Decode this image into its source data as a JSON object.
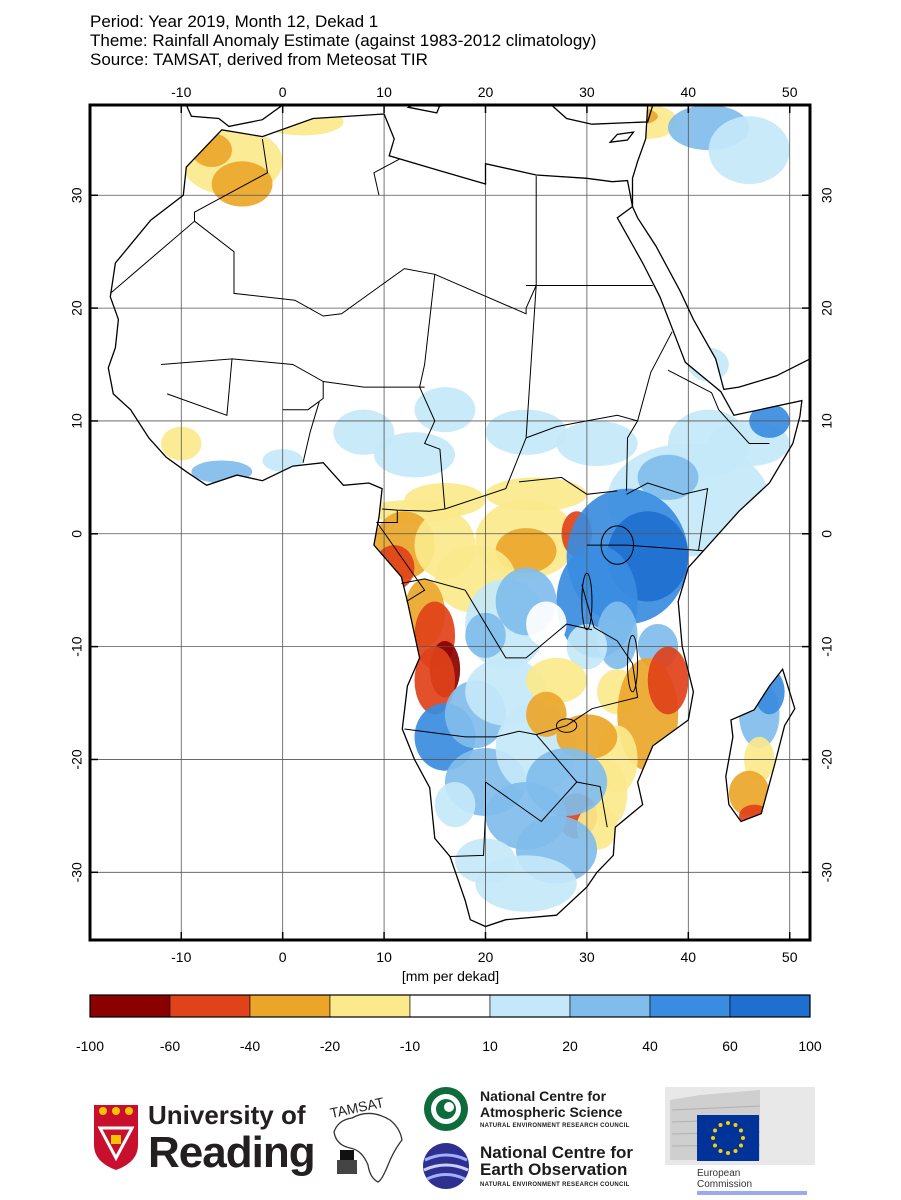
{
  "header": {
    "line1": "Period: Year 2019, Month 12, Dekad 1",
    "line2": "Theme: Rainfall Anomaly Estimate (against 1983-2012 climatology)",
    "line3": "Source: TAMSAT, derived from Meteosat TIR"
  },
  "map": {
    "lon_range": [
      -19,
      52
    ],
    "lat_range": [
      -36,
      38
    ],
    "lon_ticks": [
      "-10",
      "0",
      "10",
      "20",
      "30",
      "40",
      "50"
    ],
    "lat_ticks": [
      "30",
      "20",
      "10",
      "0",
      "-10",
      "-20",
      "-30"
    ]
  },
  "colorbar": {
    "units_label": "[mm per dekad]",
    "tick_labels": [
      "-100",
      "-60",
      "-40",
      "-20",
      "-10",
      "10",
      "20",
      "40",
      "60",
      "100"
    ],
    "colors": [
      "#8b0000",
      "#e0421a",
      "#eba62a",
      "#fbe98c",
      "#ffffff",
      "#c4e8f9",
      "#80bdec",
      "#3a8ce0",
      "#1f6fd0"
    ]
  },
  "logos": {
    "university_line1": "University of",
    "university_line2": "Reading",
    "tamsat": "TAMSAT",
    "ncas_line1": "National Centre for",
    "ncas_line2": "Atmospheric Science",
    "ncas_sub": "NATURAL ENVIRONMENT RESEARCH COUNCIL",
    "nceo_line1": "National Centre for",
    "nceo_line2": "Earth Observation",
    "nceo_sub": "NATURAL ENVIRONMENT RESEARCH COUNCIL",
    "ec_line1": "European",
    "ec_line2": "Commission"
  }
}
